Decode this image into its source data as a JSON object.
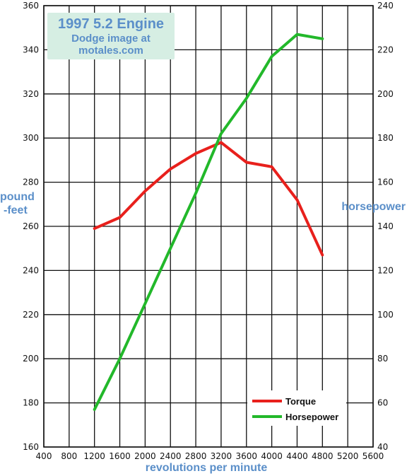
{
  "chart_data": {
    "type": "line",
    "title": "1997 5.2 Engine",
    "subtitle": [
      "Dodge image at",
      "motales.com"
    ],
    "xlabel": "revolutions per minute",
    "ylabel_left": [
      "pound",
      "-feet"
    ],
    "ylabel_right": "horsepower",
    "xlim": [
      400,
      5600
    ],
    "xticks": [
      400,
      800,
      1200,
      1600,
      2000,
      2400,
      2800,
      3200,
      3600,
      4000,
      4400,
      4800,
      5200,
      5600
    ],
    "ylim_left": [
      160,
      360
    ],
    "yticks_left": [
      160,
      180,
      200,
      220,
      240,
      260,
      280,
      300,
      320,
      340,
      360
    ],
    "ylim_right": [
      40,
      240
    ],
    "yticks_right": [
      40,
      60,
      80,
      100,
      120,
      140,
      160,
      180,
      200,
      220,
      240
    ],
    "grid": true,
    "legend_position": "bottom-right",
    "series": [
      {
        "name": "Torque",
        "axis": "left",
        "color": "#e8201c",
        "x": [
          1200,
          1600,
          2000,
          2400,
          2800,
          3200,
          3600,
          4000,
          4400,
          4800
        ],
        "values": [
          259,
          264,
          276,
          286,
          293,
          298,
          289,
          287,
          272,
          247
        ]
      },
      {
        "name": "Horsepower",
        "axis": "right",
        "color": "#22b82a",
        "x": [
          1200,
          1600,
          2000,
          2400,
          2800,
          3200,
          3600,
          4000,
          4400,
          4800
        ],
        "values": [
          57,
          80,
          105,
          130,
          155,
          182,
          198,
          217,
          227,
          225
        ]
      }
    ]
  }
}
